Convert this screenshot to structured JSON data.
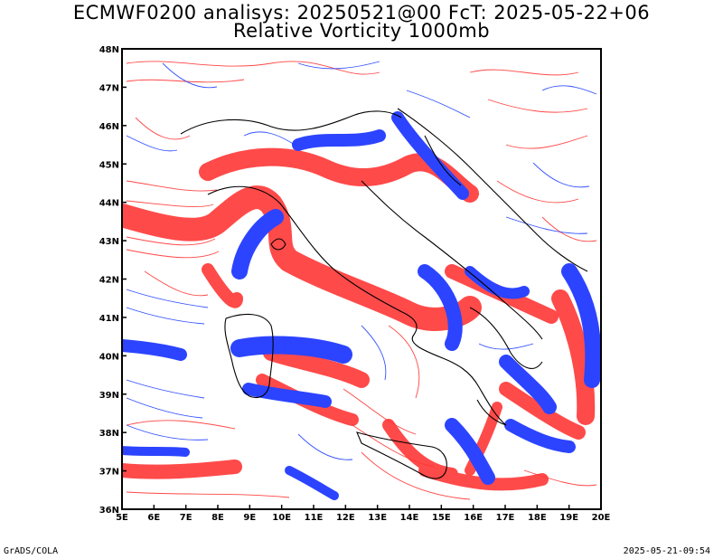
{
  "title_line1": "ECMWF0200 analisys: 20250521@00 FcT: 2025-05-22+06",
  "title_line2": "Relative Vorticity 1000mb",
  "footer_left": "GrADS/COLA",
  "footer_right": "2025-05-21-09:54",
  "map": {
    "lon_range": [
      5,
      20
    ],
    "lat_range": [
      36,
      48
    ],
    "lon_ticks": [
      "5E",
      "6E",
      "7E",
      "8E",
      "9E",
      "10E",
      "11E",
      "12E",
      "13E",
      "14E",
      "15E",
      "16E",
      "17E",
      "18E",
      "19E",
      "20E"
    ],
    "lat_ticks": [
      "36N",
      "37N",
      "38N",
      "39N",
      "40N",
      "41N",
      "42N",
      "43N",
      "44N",
      "45N",
      "46N",
      "47N",
      "48N"
    ],
    "colors": {
      "positive_contour": "#ff3333",
      "negative_contour": "#2040ff",
      "positive_fill": "#ff4a4a",
      "negative_fill": "#2c44ff",
      "coast": "#000000"
    }
  }
}
